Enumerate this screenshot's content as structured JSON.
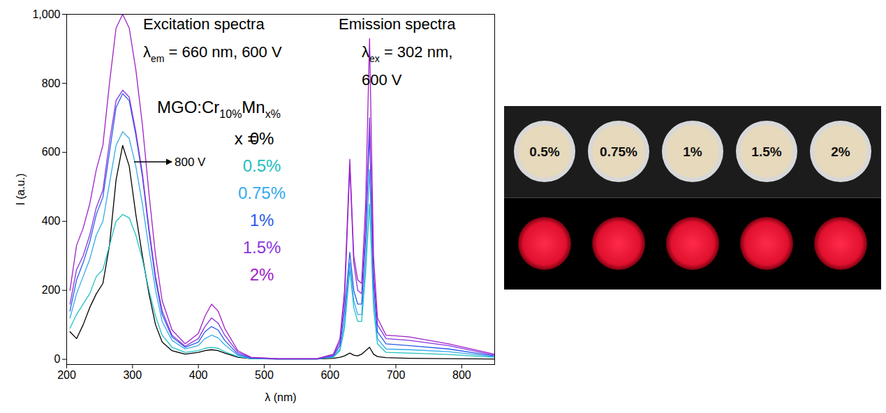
{
  "chart_data": {
    "type": "line",
    "x_label": "λ (nm)",
    "y_label": "I (a.u.)",
    "xlim": [
      200,
      850
    ],
    "ylim": [
      -15,
      1000
    ],
    "xticks": [
      200,
      300,
      400,
      500,
      600,
      700,
      800
    ],
    "yticks": [
      0,
      200,
      400,
      600,
      800,
      1000
    ],
    "legend": "top",
    "legend_title": [
      {
        "text": "MGO:Cr"
      },
      {
        "text": "10%",
        "sub": true
      },
      {
        "text": "Mn"
      },
      {
        "text": "x%",
        "sub": true
      }
    ],
    "legend_prefix": "x = ",
    "annotations": [
      [
        {
          "text": "Excitation spectra"
        }
      ],
      [
        {
          "text": "λ"
        },
        {
          "text": "em",
          "sub": true
        },
        {
          "text": " = 660 nm, 600 V"
        }
      ],
      [
        {
          "text": "Emission spectra"
        }
      ],
      [
        {
          "text": "λ"
        },
        {
          "text": "ex",
          "sub": true
        },
        {
          "text": " = 302 nm,"
        }
      ],
      [
        {
          "text": "600 V"
        }
      ],
      [
        {
          "text": "800 V"
        }
      ]
    ],
    "x": [
      205,
      215,
      225,
      235,
      245,
      255,
      265,
      275,
      285,
      295,
      305,
      315,
      325,
      335,
      345,
      360,
      380,
      400,
      410,
      420,
      430,
      440,
      460,
      480,
      520,
      580,
      605,
      615,
      622,
      630,
      636,
      642,
      648,
      654,
      660,
      666,
      672,
      685,
      720,
      780,
      850
    ],
    "series": [
      {
        "name": "0%",
        "color": "#000000",
        "values": [
          80,
          60,
          100,
          150,
          190,
          220,
          330,
          520,
          620,
          560,
          420,
          300,
          190,
          100,
          50,
          25,
          15,
          20,
          25,
          28,
          25,
          18,
          6,
          2,
          1,
          1,
          3,
          6,
          10,
          18,
          12,
          10,
          15,
          25,
          35,
          15,
          8,
          5,
          3,
          2,
          1
        ]
      },
      {
        "name": "0.5%",
        "color": "#20c0c0",
        "values": [
          90,
          130,
          160,
          190,
          240,
          260,
          330,
          400,
          420,
          410,
          360,
          290,
          200,
          125,
          70,
          35,
          20,
          25,
          32,
          35,
          32,
          22,
          8,
          2,
          1,
          1,
          6,
          25,
          90,
          260,
          150,
          110,
          110,
          250,
          450,
          150,
          45,
          20,
          18,
          14,
          6
        ]
      },
      {
        "name": "0.75%",
        "color": "#33aaee",
        "values": [
          120,
          190,
          240,
          290,
          360,
          400,
          510,
          620,
          660,
          640,
          560,
          450,
          320,
          200,
          110,
          55,
          30,
          40,
          60,
          70,
          62,
          42,
          12,
          3,
          1,
          1,
          8,
          30,
          110,
          280,
          170,
          130,
          130,
          290,
          550,
          180,
          60,
          30,
          28,
          22,
          8
        ]
      },
      {
        "name": "1%",
        "color": "#2a5be8",
        "values": [
          140,
          230,
          280,
          340,
          420,
          470,
          600,
          730,
          770,
          750,
          650,
          530,
          370,
          230,
          130,
          65,
          35,
          50,
          80,
          95,
          85,
          55,
          15,
          4,
          1,
          1,
          10,
          40,
          140,
          310,
          200,
          160,
          160,
          350,
          660,
          220,
          80,
          45,
          40,
          30,
          10
        ]
      },
      {
        "name": "1.5%",
        "color": "#8a33e0",
        "values": [
          160,
          260,
          300,
          360,
          440,
          490,
          630,
          750,
          780,
          760,
          660,
          540,
          380,
          240,
          140,
          70,
          38,
          60,
          95,
          120,
          105,
          70,
          20,
          5,
          2,
          2,
          12,
          50,
          170,
          560,
          280,
          200,
          190,
          380,
          700,
          250,
          100,
          60,
          55,
          40,
          12
        ]
      },
      {
        "name": "2%",
        "color": "#a020c8",
        "values": [
          200,
          330,
          380,
          450,
          550,
          620,
          800,
          960,
          1000,
          960,
          840,
          680,
          480,
          300,
          170,
          85,
          45,
          75,
          125,
          160,
          140,
          90,
          25,
          6,
          2,
          2,
          15,
          60,
          200,
          580,
          300,
          230,
          220,
          450,
          930,
          300,
          120,
          70,
          65,
          45,
          15
        ]
      }
    ]
  },
  "photo": {
    "labels": [
      "0.5%",
      "0.75%",
      "1%",
      "1.5%",
      "2%"
    ]
  }
}
